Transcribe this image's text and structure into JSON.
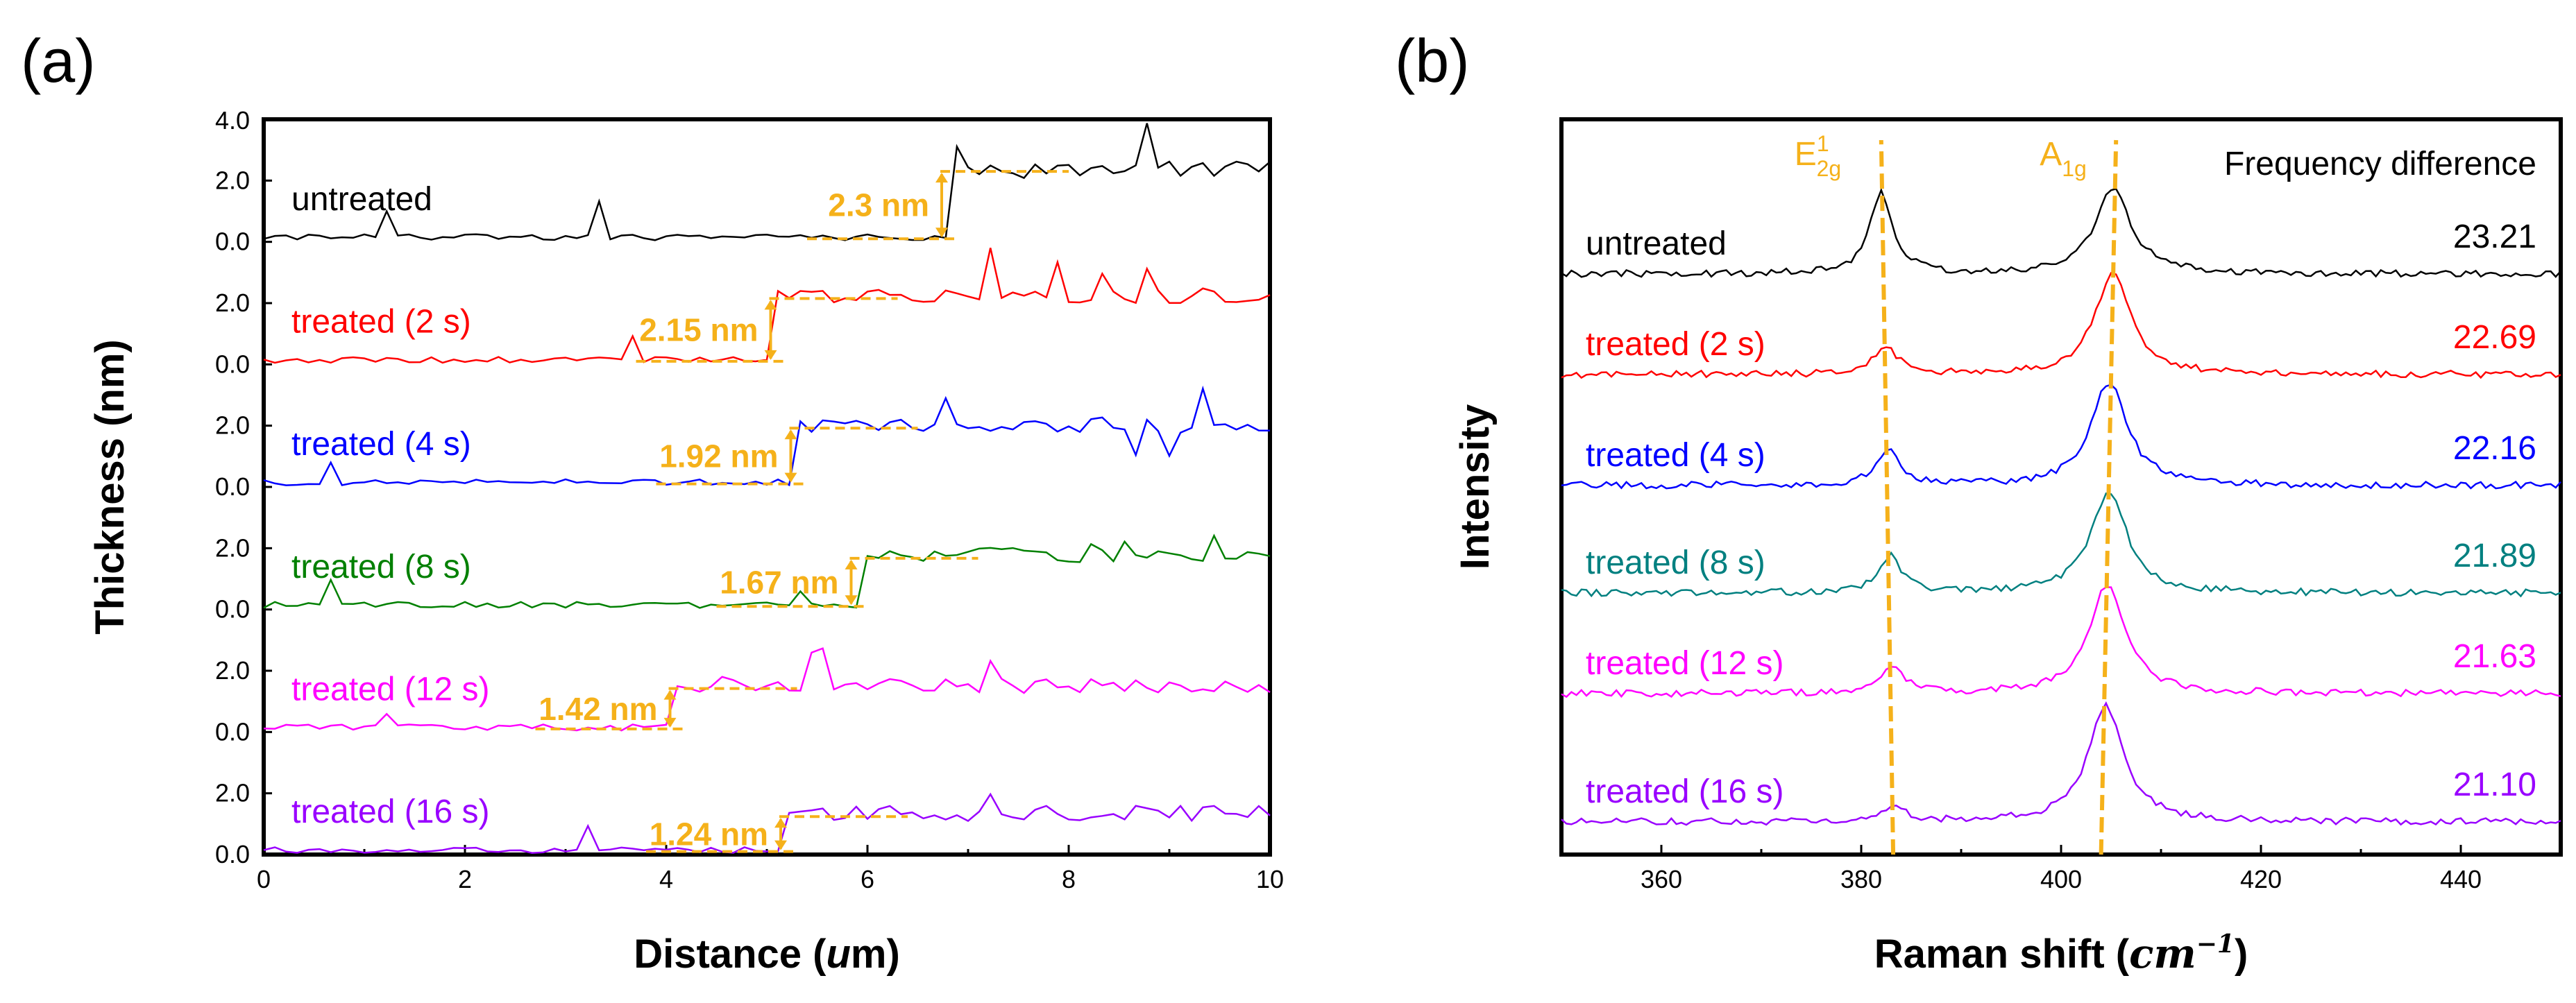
{
  "chart_data": [
    {
      "panel": "(a)",
      "type": "line",
      "xlabel_main": "Distance (",
      "xlabel_unit": "u",
      "xlabel_rest": "m)",
      "ylabel": "Thickness (nm)",
      "xlim": [
        0,
        10
      ],
      "xticks": [
        "0",
        "2",
        "4",
        "6",
        "8",
        "10"
      ],
      "ytick_top": "4.0",
      "ytick_labels": [
        "2.0",
        "0.0"
      ],
      "offset_step": 1.75,
      "series": [
        {
          "name": "untreated",
          "color": "#000000",
          "offset": 8.75,
          "base": 0.0,
          "step": 2.3,
          "step_x": 6.8,
          "label": "2.3 nm",
          "ann_color": "#f5b11a",
          "noise_seed": 3,
          "spikes": [
            [
              1.2,
              0.9
            ],
            [
              3.3,
              1.2
            ],
            [
              8.8,
              1.3
            ],
            [
              6.9,
              0.6
            ],
            [
              7.6,
              -0.2
            ]
          ]
        },
        {
          "name": "treated (2 s)",
          "color": "#ff0000",
          "offset": 6.75,
          "base": 0.0,
          "step": 2.15,
          "step_x": 5.1,
          "label": "2.15 nm",
          "ann_color": "#f5b11a",
          "noise_seed": 7,
          "spikes": [
            [
              3.7,
              0.8
            ],
            [
              7.2,
              1.6
            ],
            [
              7.9,
              0.9
            ],
            [
              8.3,
              0.8
            ],
            [
              8.8,
              0.7
            ]
          ]
        },
        {
          "name": "treated (4 s)",
          "color": "#0000ff",
          "offset": 4.75,
          "base": 0.0,
          "step": 1.92,
          "step_x": 5.3,
          "label": "1.92 nm",
          "ann_color": "#f5b11a",
          "noise_seed": 11,
          "spikes": [
            [
              0.7,
              0.6
            ],
            [
              6.8,
              1.0
            ],
            [
              9.3,
              1.4
            ],
            [
              9.0,
              -0.8
            ],
            [
              8.7,
              -0.9
            ]
          ]
        },
        {
          "name": "treated (8 s)",
          "color": "#008000",
          "offset": 2.75,
          "base": 0.0,
          "step": 1.67,
          "step_x": 5.9,
          "label": "1.67 nm",
          "ann_color": "#f5b11a",
          "noise_seed": 13,
          "spikes": [
            [
              0.7,
              0.9
            ],
            [
              5.3,
              0.5
            ],
            [
              8.6,
              0.6
            ],
            [
              8.2,
              0.5
            ],
            [
              9.4,
              0.7
            ]
          ]
        },
        {
          "name": "treated (12 s)",
          "color": "#ff00ff",
          "offset": 0.75,
          "base": 0.0,
          "step": 1.42,
          "step_x": 4.1,
          "label": "1.42 nm",
          "ann_color": "#f5b11a",
          "noise_seed": 17,
          "spikes": [
            [
              1.2,
              0.5
            ],
            [
              5.5,
              1.3
            ],
            [
              7.2,
              0.7
            ],
            [
              4.6,
              0.4
            ]
          ]
        },
        {
          "name": "treated (16 s)",
          "color": "#9900ff",
          "offset": -1.5,
          "base": 0.0,
          "step": 1.24,
          "step_x": 5.2,
          "label": "1.24 nm",
          "ann_color": "#f5b11a",
          "noise_seed": 19,
          "spikes": [
            [
              3.2,
              0.8
            ],
            [
              7.2,
              0.6
            ],
            [
              9.3,
              0.3
            ]
          ]
        }
      ]
    },
    {
      "panel": "(b)",
      "type": "line",
      "xlabel_main": "Raman shift (",
      "xlabel_unit": "cm",
      "xlabel_sup": "−1",
      "xlabel_rest": ")",
      "ylabel": "Intensity",
      "xlim": [
        350,
        450
      ],
      "xticks": [
        "360",
        "380",
        "400",
        "420",
        "440"
      ],
      "xtick_values": [
        360,
        380,
        400,
        420,
        440
      ],
      "peak_E_base": "E",
      "peak_E_sup": "1",
      "peak_E_sub": "2g",
      "peak_A_base": "A",
      "peak_A_sub": "1g",
      "peak_E_line": [
        383.2,
        382.0
      ],
      "peak_A_line": [
        404.0,
        405.5
      ],
      "legend_title": "Frequency difference",
      "series": [
        {
          "name": "untreated",
          "color": "#000000",
          "fd": "23.21",
          "E_pos": 382.0,
          "A_pos": 405.2,
          "E_amp": 1.0,
          "A_amp": 1.05
        },
        {
          "name": "treated (2 s)",
          "color": "#ff0000",
          "fd": "22.69",
          "E_pos": 382.5,
          "A_pos": 405.2,
          "E_amp": 0.35,
          "A_amp": 1.25
        },
        {
          "name": "treated (4 s)",
          "color": "#0000ff",
          "fd": "22.16",
          "E_pos": 382.6,
          "A_pos": 404.8,
          "E_amp": 0.45,
          "A_amp": 1.3
        },
        {
          "name": "treated (8 s)",
          "color": "#008080",
          "fd": "21.89",
          "E_pos": 382.9,
          "A_pos": 404.8,
          "E_amp": 0.45,
          "A_amp": 1.25
        },
        {
          "name": "treated (12 s)",
          "color": "#ff00ff",
          "fd": "21.63",
          "E_pos": 383.0,
          "A_pos": 404.6,
          "E_amp": 0.35,
          "A_amp": 1.35
        },
        {
          "name": "treated (16 s)",
          "color": "#9900ff",
          "fd": "21.10",
          "E_pos": 383.3,
          "A_pos": 404.5,
          "E_amp": 0.2,
          "A_amp": 1.45
        }
      ]
    }
  ]
}
